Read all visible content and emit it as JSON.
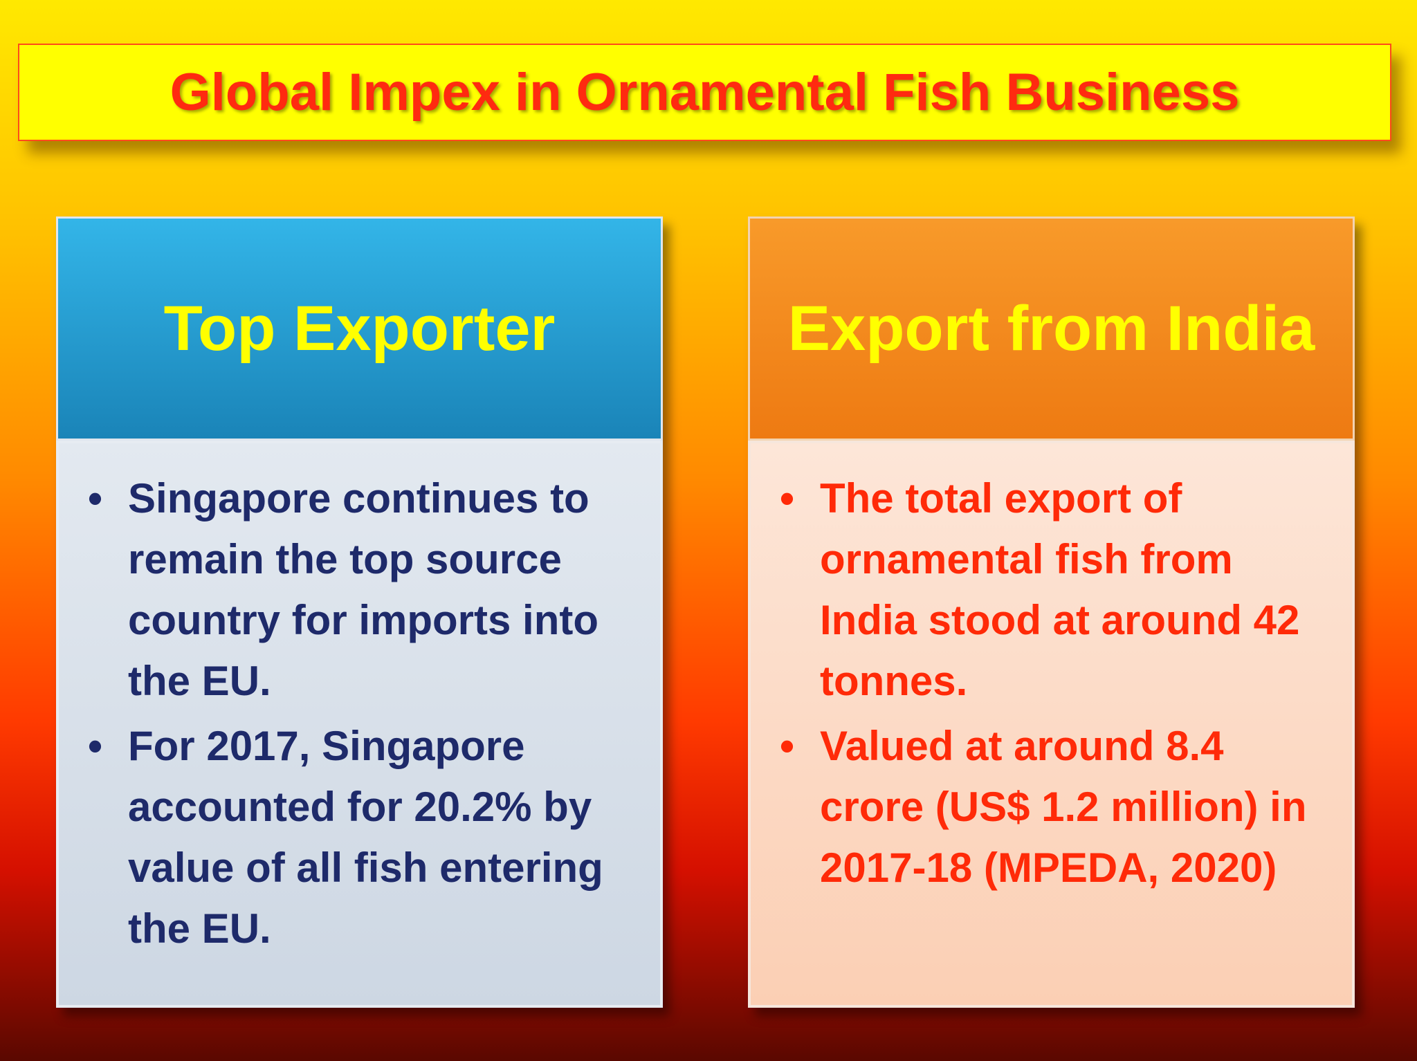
{
  "title": "Global Impex in Ornamental Fish Business",
  "panels": [
    {
      "heading": "Top Exporter",
      "bullets": [
        "Singapore continues to remain the top source country for imports into the EU.",
        "For 2017, Singapore accounted for 20.2% by value of all fish entering the EU."
      ]
    },
    {
      "heading": "Export from India",
      "bullets": [
        "The total export of ornamental fish from India stood at around 42 tonnes.",
        "Valued at around 8.4 crore (US$ 1.2 million) in 2017-18 (MPEDA, 2020)"
      ]
    }
  ]
}
